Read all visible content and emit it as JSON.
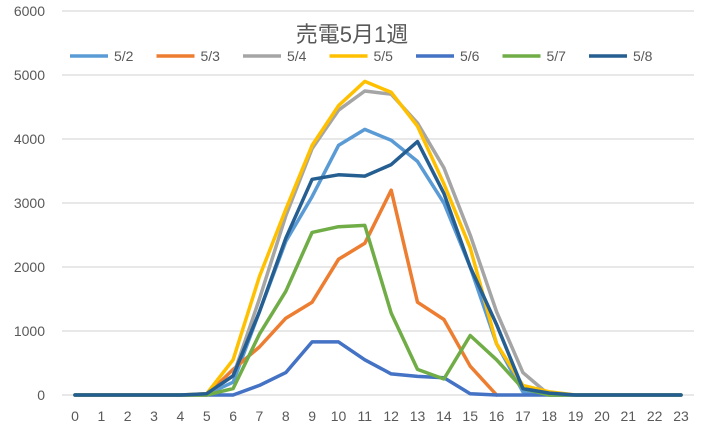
{
  "chart_data": {
    "type": "line",
    "title": "売電5月1週",
    "xlabel": "",
    "ylabel": "",
    "ylim": [
      0,
      6000
    ],
    "yticks": [
      0,
      1000,
      2000,
      3000,
      4000,
      5000,
      6000
    ],
    "grid": true,
    "legend": "top",
    "x": [
      0,
      1,
      2,
      3,
      4,
      5,
      6,
      7,
      8,
      9,
      10,
      11,
      12,
      13,
      14,
      15,
      16,
      17,
      18,
      19,
      20,
      21,
      22,
      23
    ],
    "series": [
      {
        "name": "5/2",
        "color": "#5B9BD5",
        "values": [
          0,
          0,
          0,
          0,
          0,
          10,
          200,
          1300,
          2400,
          3100,
          3900,
          4150,
          3980,
          3650,
          3000,
          2000,
          800,
          50,
          0,
          0,
          0,
          0,
          0,
          0
        ]
      },
      {
        "name": "5/3",
        "color": "#ED7D31",
        "values": [
          0,
          0,
          0,
          0,
          0,
          0,
          400,
          750,
          1200,
          1450,
          2120,
          2370,
          3200,
          1450,
          1180,
          450,
          0,
          null,
          null,
          null,
          null,
          null,
          null,
          null
        ]
      },
      {
        "name": "5/4",
        "color": "#A5A5A5",
        "values": [
          0,
          0,
          0,
          0,
          0,
          10,
          300,
          1500,
          2800,
          3850,
          4450,
          4750,
          4700,
          4250,
          3550,
          2500,
          1300,
          350,
          0,
          0,
          0,
          0,
          0,
          0
        ]
      },
      {
        "name": "5/5",
        "color": "#FFC000",
        "values": [
          0,
          0,
          0,
          0,
          0,
          20,
          550,
          1850,
          2900,
          3900,
          4520,
          4900,
          4730,
          4200,
          3300,
          2300,
          800,
          150,
          50,
          0,
          0,
          0,
          0,
          0
        ]
      },
      {
        "name": "5/6",
        "color": "#4472C4",
        "values": [
          0,
          0,
          0,
          0,
          0,
          0,
          0,
          150,
          350,
          830,
          830,
          550,
          330,
          290,
          270,
          20,
          0,
          0,
          0,
          0,
          0,
          0,
          0,
          0
        ]
      },
      {
        "name": "5/7",
        "color": "#70AD47",
        "values": [
          0,
          0,
          0,
          0,
          0,
          0,
          100,
          950,
          1620,
          2540,
          2630,
          2650,
          1280,
          400,
          250,
          930,
          550,
          100,
          0,
          0,
          0,
          0,
          0,
          0
        ]
      },
      {
        "name": "5/8",
        "color": "#255E91",
        "values": [
          0,
          0,
          0,
          0,
          0,
          20,
          300,
          1300,
          2450,
          3370,
          3440,
          3420,
          3600,
          3960,
          3150,
          2000,
          1100,
          100,
          30,
          0,
          0,
          0,
          0,
          0
        ]
      }
    ]
  }
}
